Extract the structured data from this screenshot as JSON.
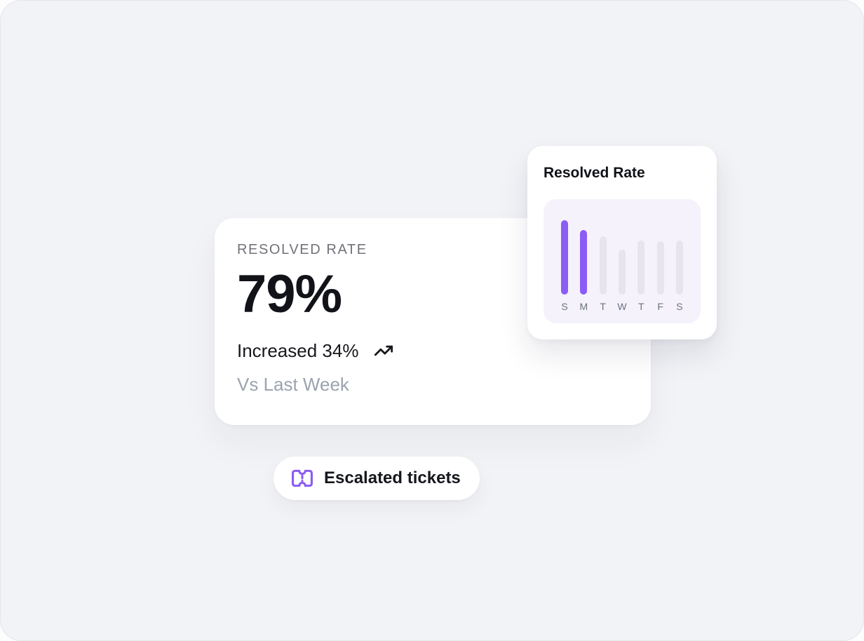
{
  "stat_card": {
    "label": "RESOLVED RATE",
    "value": "79%",
    "change": "Increased 34%",
    "trend_icon": "trending-up-icon",
    "comparison": "Vs Last Week"
  },
  "chart_card": {
    "title": "Resolved Rate"
  },
  "chart_data": {
    "type": "bar",
    "title": "Resolved Rate",
    "categories": [
      "S",
      "M",
      "T",
      "W",
      "T",
      "F",
      "S"
    ],
    "values": [
      100,
      87,
      78,
      60,
      73,
      72,
      73
    ],
    "ylim": [
      0,
      100
    ],
    "grid": false,
    "legend": false,
    "highlighted_indices": [
      0,
      1
    ],
    "bar_color_active": "#8B5CF6",
    "bar_color_muted": "#E6E4EC",
    "panel_background": "#F5F2FB",
    "label_color": "#6B7280"
  },
  "escalated_button": {
    "label": "Escalated tickets",
    "icon": "ticket-icon",
    "icon_color": "#8B5CF6"
  },
  "colors": {
    "page_background": "#F2F3F6",
    "card_background": "#FFFFFF",
    "accent_purple": "#8B5CF6",
    "text_primary": "#111318",
    "text_secondary": "#71717A",
    "text_muted": "#9CA3AF"
  }
}
